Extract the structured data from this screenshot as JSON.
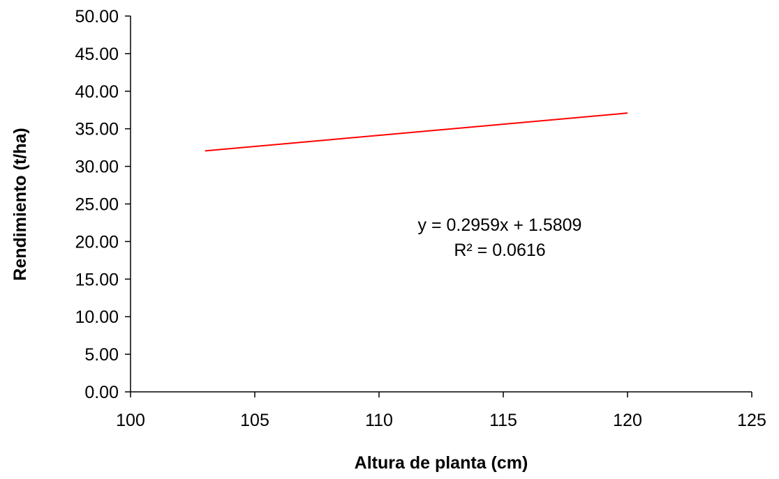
{
  "chart_data": {
    "type": "line",
    "title": "",
    "xlabel": "Altura de planta (cm)",
    "ylabel": "Rendimiento (t/ha)",
    "xlim": [
      100,
      125
    ],
    "ylim": [
      0,
      50
    ],
    "x_ticks": [
      100,
      105,
      110,
      115,
      120,
      125
    ],
    "x_tick_labels": [
      "100",
      "105",
      "110",
      "115",
      "120",
      "125"
    ],
    "y_ticks": [
      0,
      5,
      10,
      15,
      20,
      25,
      30,
      35,
      40,
      45,
      50
    ],
    "y_tick_labels": [
      "0.00",
      "5.00",
      "10.00",
      "15.00",
      "20.00",
      "25.00",
      "30.00",
      "35.00",
      "40.00",
      "45.00",
      "50.00"
    ],
    "grid": false,
    "legend": "none",
    "series": [
      {
        "color": "#ff0000",
        "points": [
          {
            "x": 103,
            "y": 32.06
          },
          {
            "x": 120,
            "y": 37.09
          }
        ]
      }
    ],
    "annotations": {
      "equation": "y = 0.2959x + 1.5809",
      "r_squared": "R² = 0.0616"
    }
  }
}
